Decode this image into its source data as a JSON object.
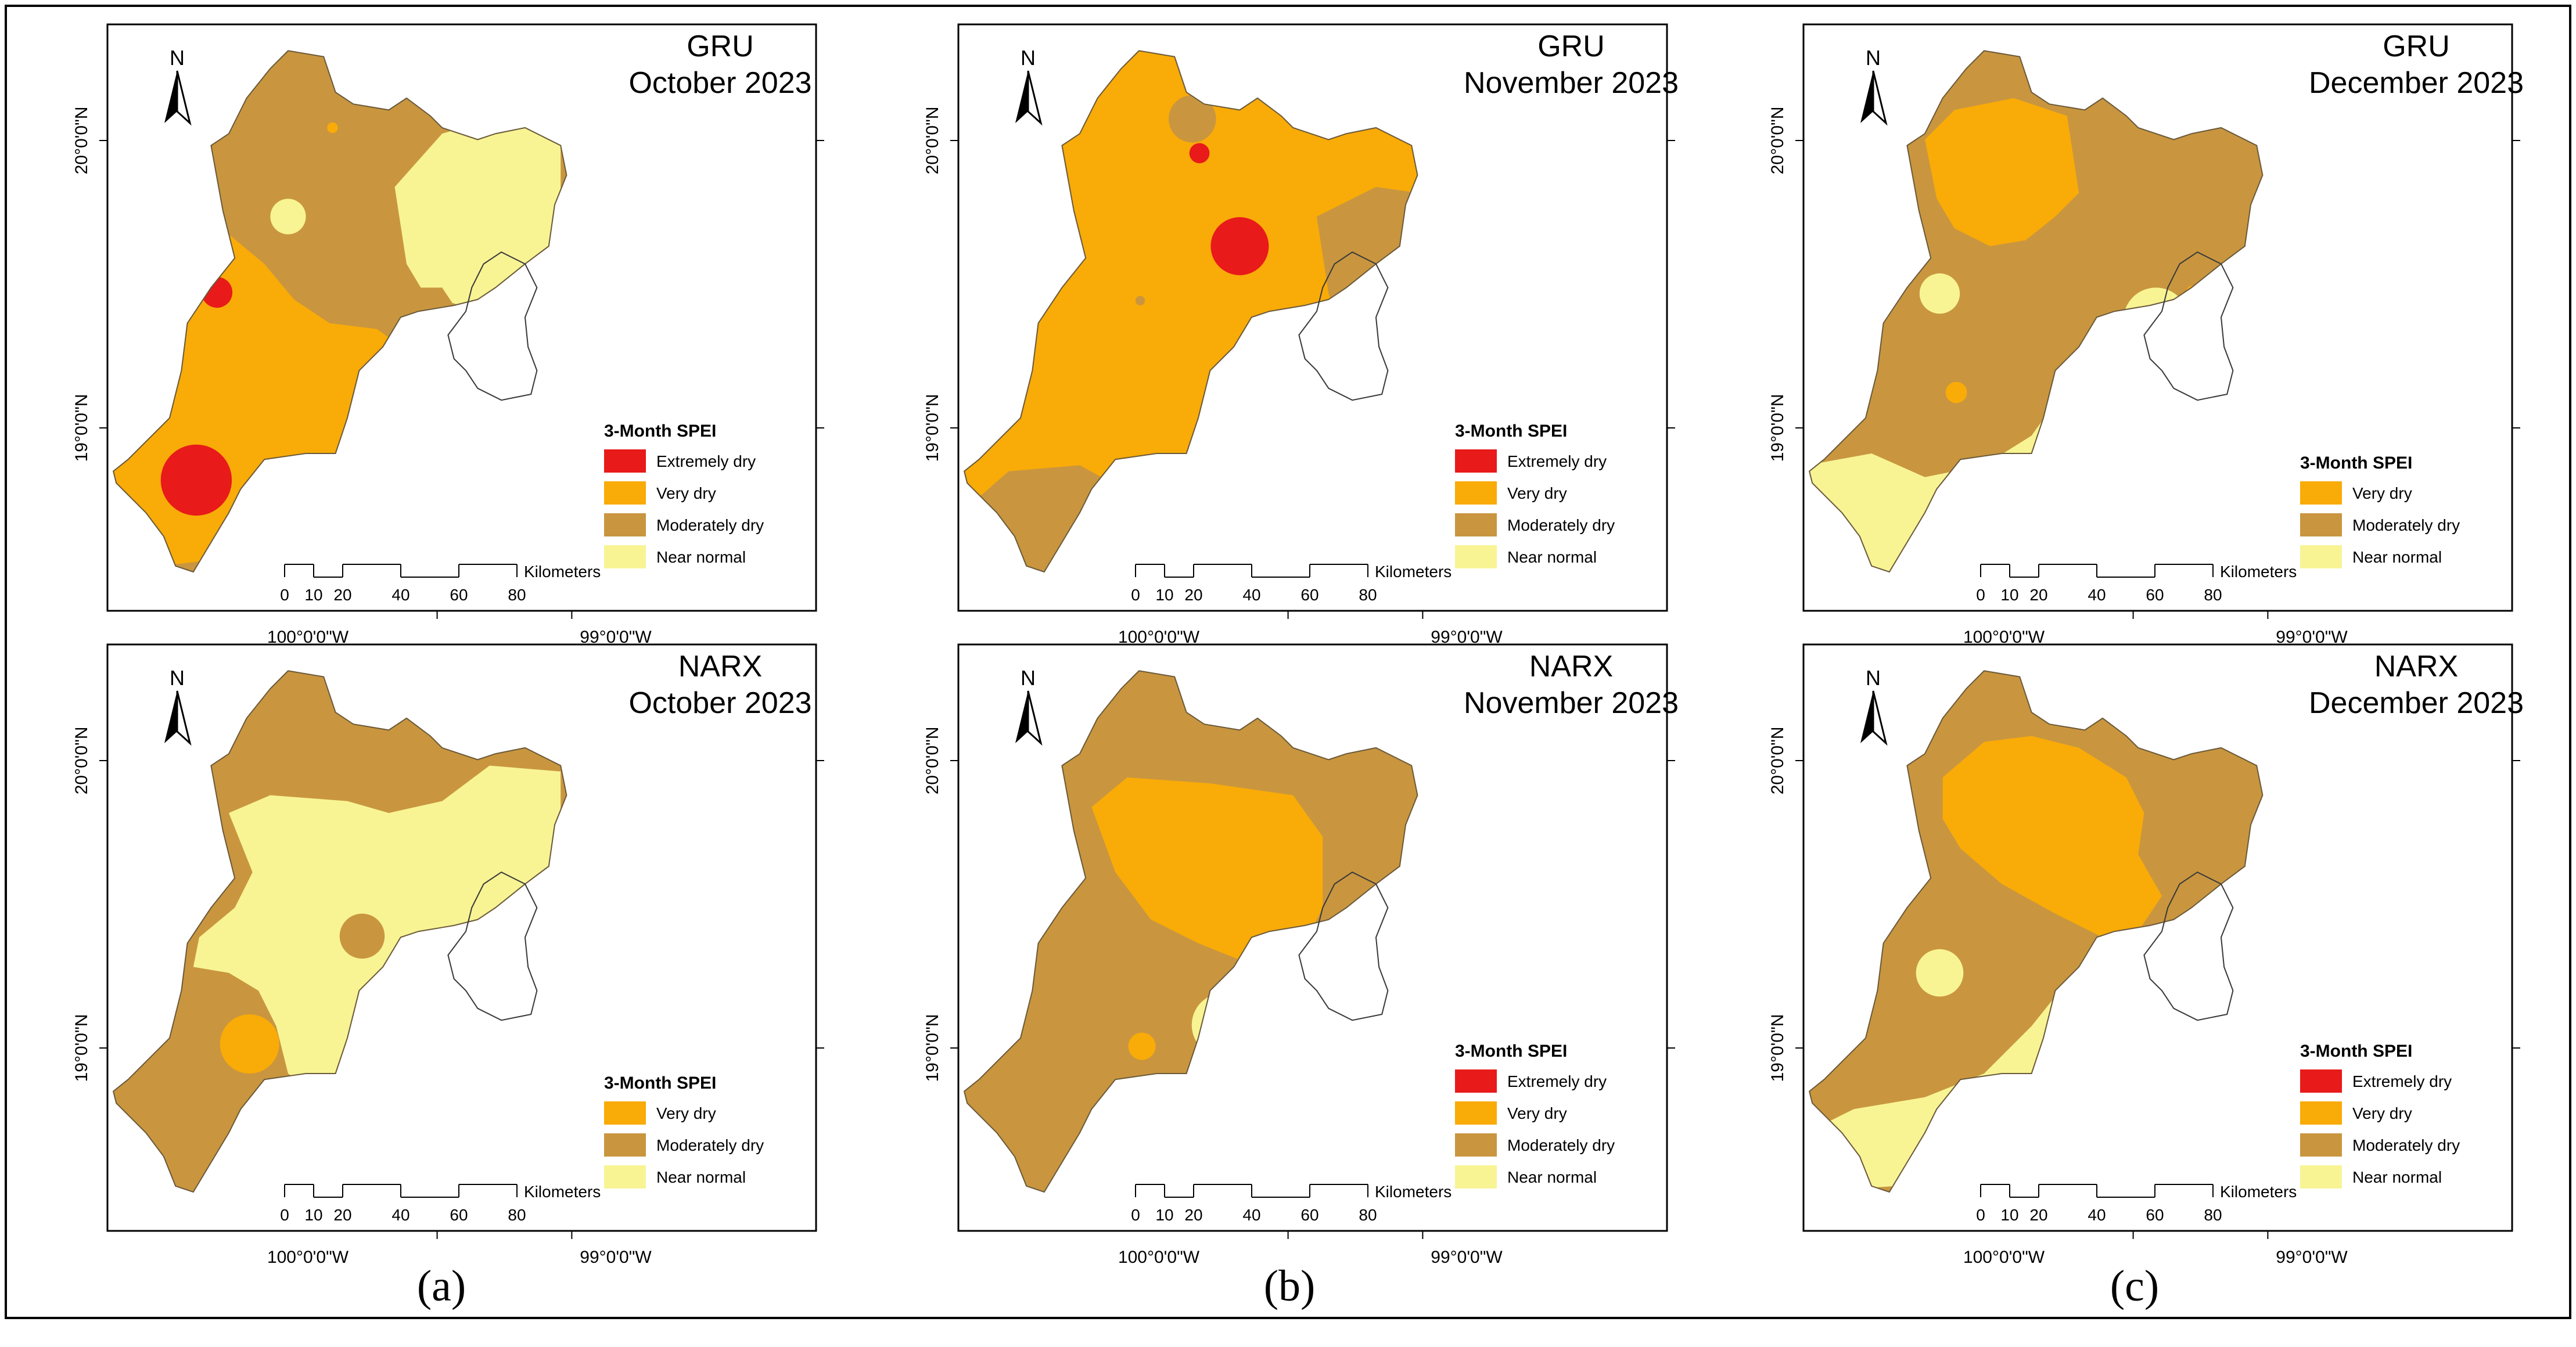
{
  "colors": {
    "extremely_dry": "#e81a1a",
    "very_dry": "#f9ab08",
    "moderately_dry": "#c9963f",
    "near_normal": "#f8f494",
    "frame": "#000000",
    "background": "#ffffff"
  },
  "legend": {
    "title": "3-Month SPEI",
    "classes": {
      "extremely_dry": "Extremely dry",
      "very_dry": "Very dry",
      "moderately_dry": "Moderately dry",
      "near_normal": "Near normal"
    }
  },
  "scale_bar": {
    "ticks": [
      "0",
      "10",
      "20",
      "40",
      "60",
      "80"
    ],
    "unit": "Kilometers"
  },
  "north_arrow": {
    "label": "N",
    "icon": "north-arrow-icon"
  },
  "coordinates": {
    "lat_labels": [
      "20°0'0\"N",
      "19°0'0\"N"
    ],
    "lon_labels": [
      "100°0'0\"W",
      "99°0'0\"W"
    ]
  },
  "columns": [
    {
      "label": "(a)",
      "letter": "a"
    },
    {
      "label": "(b)",
      "letter": "b"
    },
    {
      "label": "(c)",
      "letter": "c"
    }
  ],
  "panels": [
    {
      "model": "GRU",
      "month": "October 2023",
      "legend_classes": [
        "extremely_dry",
        "very_dry",
        "moderately_dry",
        "near_normal"
      ]
    },
    {
      "model": "GRU",
      "month": "November 2023",
      "legend_classes": [
        "extremely_dry",
        "very_dry",
        "moderately_dry",
        "near_normal"
      ]
    },
    {
      "model": "GRU",
      "month": "December 2023",
      "legend_classes": [
        "very_dry",
        "moderately_dry",
        "near_normal"
      ]
    },
    {
      "model": "NARX",
      "month": "October 2023",
      "legend_classes": [
        "very_dry",
        "moderately_dry",
        "near_normal"
      ]
    },
    {
      "model": "NARX",
      "month": "November 2023",
      "legend_classes": [
        "extremely_dry",
        "very_dry",
        "moderately_dry",
        "near_normal"
      ]
    },
    {
      "model": "NARX",
      "month": "December 2023",
      "legend_classes": [
        "extremely_dry",
        "very_dry",
        "moderately_dry",
        "near_normal"
      ]
    }
  ]
}
